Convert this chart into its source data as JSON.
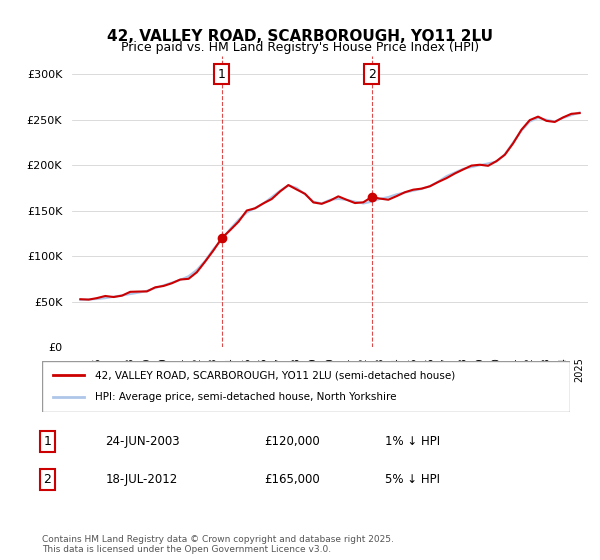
{
  "title_line1": "42, VALLEY ROAD, SCARBOROUGH, YO11 2LU",
  "title_line2": "Price paid vs. HM Land Registry's House Price Index (HPI)",
  "ylabel": "",
  "background_color": "#ffffff",
  "plot_bg_color": "#ffffff",
  "grid_color": "#cccccc",
  "hpi_color": "#aec6e8",
  "property_color": "#cc0000",
  "shade_color": "#dce9f7",
  "sale1_date": "2003-06-24",
  "sale1_price": 120000,
  "sale1_label": "1",
  "sale2_date": "2012-07-18",
  "sale2_price": 165000,
  "sale2_label": "2",
  "legend1": "42, VALLEY ROAD, SCARBOROUGH, YO11 2LU (semi-detached house)",
  "legend2": "HPI: Average price, semi-detached house, North Yorkshire",
  "table_row1": [
    "1",
    "24-JUN-2003",
    "£120,000",
    "1% ↓ HPI"
  ],
  "table_row2": [
    "2",
    "18-JUL-2012",
    "£165,000",
    "5% ↓ HPI"
  ],
  "footer": "Contains HM Land Registry data © Crown copyright and database right 2025.\nThis data is licensed under the Open Government Licence v3.0.",
  "ylim": [
    0,
    320000
  ],
  "yticks": [
    0,
    50000,
    100000,
    150000,
    200000,
    250000,
    300000
  ]
}
